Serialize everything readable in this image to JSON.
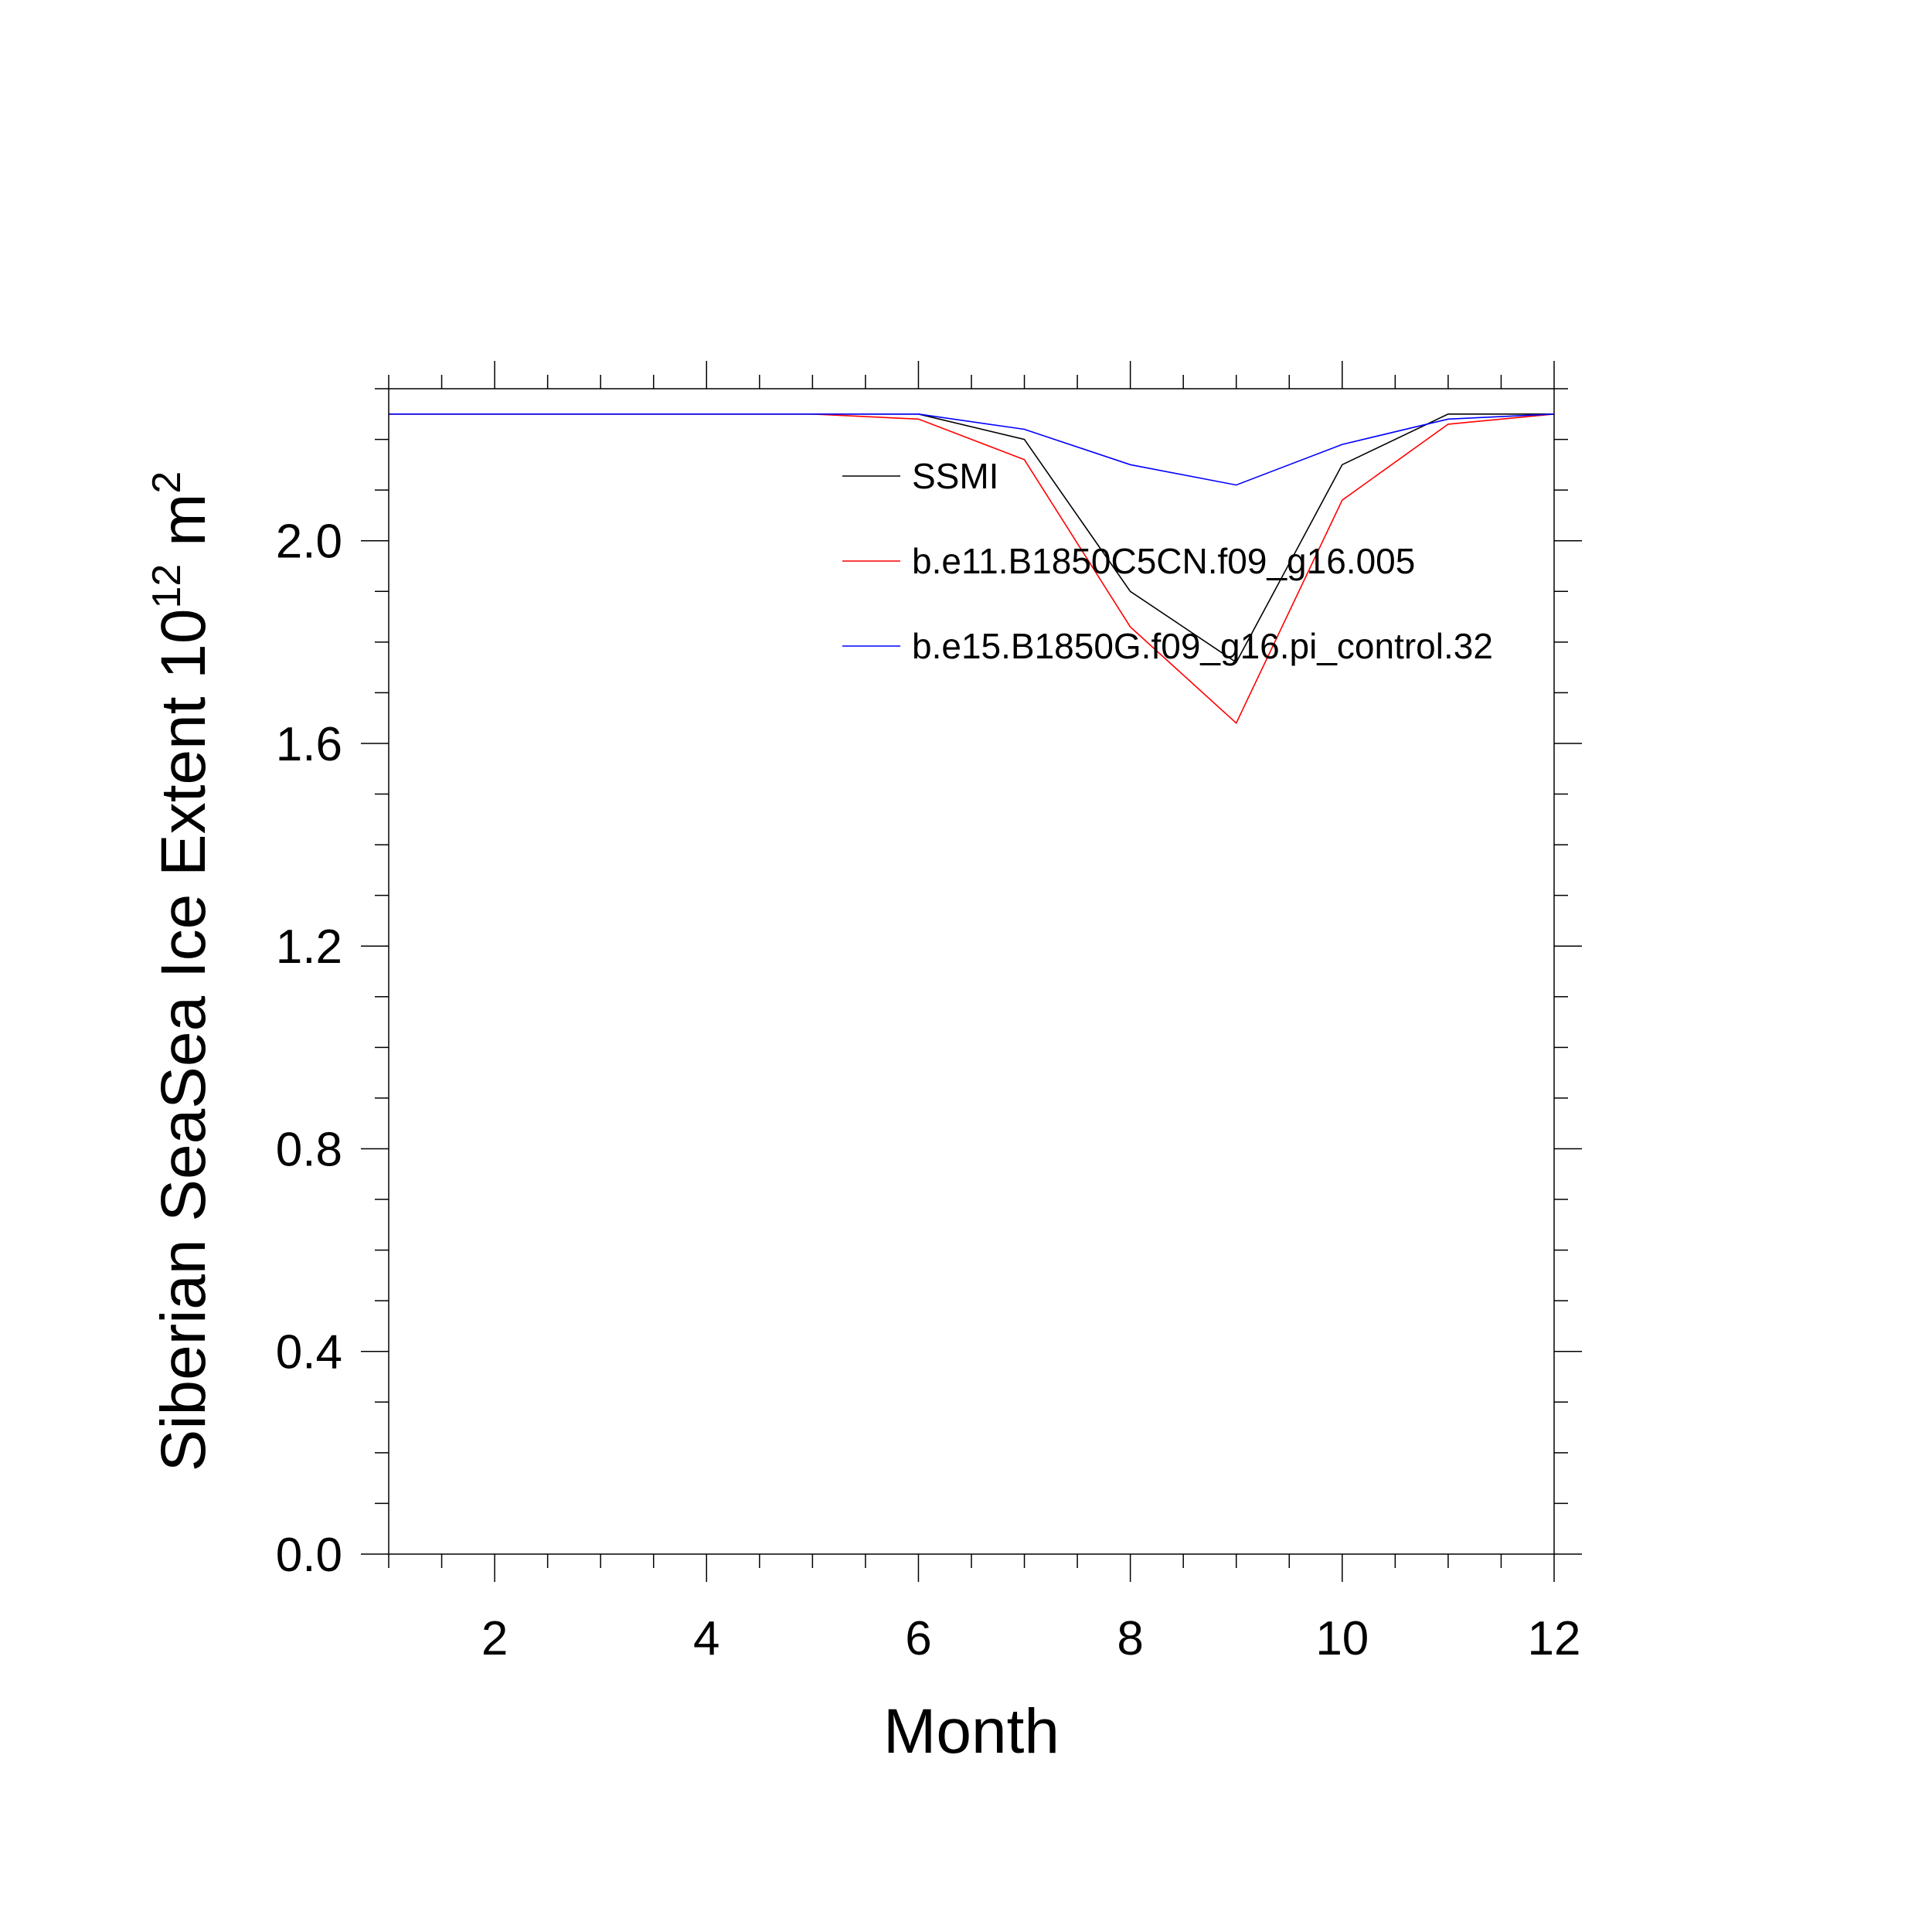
{
  "chart_data": {
    "type": "line",
    "title": "",
    "xlabel": "Month",
    "ylabel": {
      "prefix": "Siberian SeaSea Ice Extent 10",
      "exponent": "12",
      "unit": " m",
      "unit_exponent": "2"
    },
    "xlim": [
      1,
      12
    ],
    "ylim": [
      0.0,
      2.3
    ],
    "x_ticks": [
      2,
      4,
      6,
      8,
      10,
      12
    ],
    "x_tick_labels": [
      "2",
      "4",
      "6",
      "8",
      "10",
      "12"
    ],
    "y_ticks": [
      0.0,
      0.4,
      0.8,
      1.2,
      1.6,
      2.0
    ],
    "y_tick_labels": [
      "0.0",
      "0.4",
      "0.8",
      "1.2",
      "1.6",
      "2.0"
    ],
    "grid": false,
    "legend_position": "top-right",
    "x": [
      1,
      2,
      3,
      4,
      5,
      6,
      7,
      8,
      9,
      10,
      11,
      12
    ],
    "series": [
      {
        "name": "SSMI",
        "color": "#000000",
        "values": [
          2.25,
          2.25,
          2.25,
          2.25,
          2.25,
          2.25,
          2.2,
          1.9,
          1.76,
          2.15,
          2.25,
          2.25
        ]
      },
      {
        "name": "b.e11.B1850C5CN.f09_g16.005",
        "color": "#ff0000",
        "values": [
          2.25,
          2.25,
          2.25,
          2.25,
          2.25,
          2.24,
          2.16,
          1.83,
          1.64,
          2.08,
          2.23,
          2.25
        ]
      },
      {
        "name": "b.e15.B1850G.f09_g16.pi_control.32",
        "color": "#0000ff",
        "values": [
          2.25,
          2.25,
          2.25,
          2.25,
          2.25,
          2.25,
          2.22,
          2.15,
          2.11,
          2.19,
          2.24,
          2.25
        ]
      }
    ]
  }
}
